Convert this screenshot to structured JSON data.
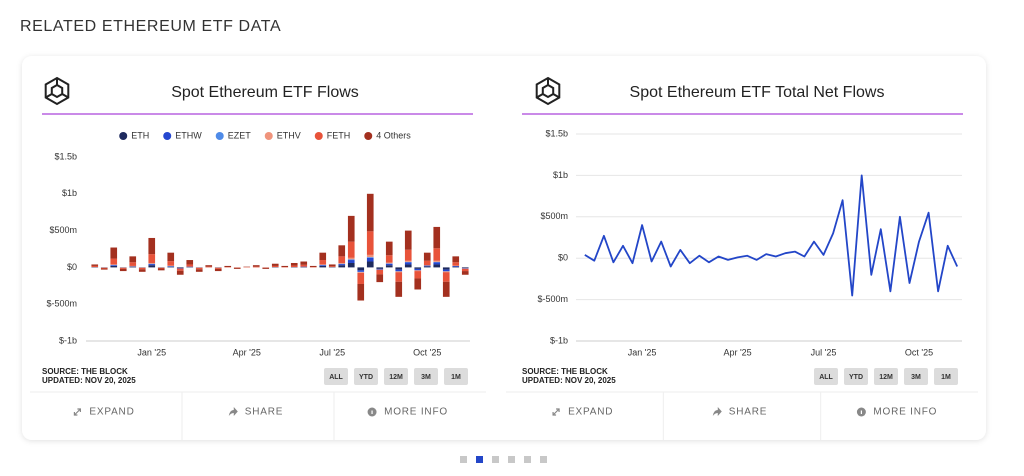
{
  "page": {
    "heading": "RELATED ETHEREUM ETF DATA",
    "panels": [
      {
        "source": "SOURCE: THE BLOCK",
        "updated": "UPDATED: NOV 20, 2025",
        "ranges": [
          "ALL",
          "YTD",
          "12M",
          "3M",
          "1M"
        ],
        "actions": [
          "EXPAND",
          "SHARE",
          "MORE INFO"
        ]
      },
      {
        "source": "SOURCE: THE BLOCK",
        "updated": "UPDATED: NOV 20, 2025",
        "ranges": [
          "ALL",
          "YTD",
          "12M",
          "3M",
          "1M"
        ],
        "actions": [
          "EXPAND",
          "SHARE",
          "MORE INFO"
        ]
      }
    ]
  },
  "chart_data": [
    {
      "type": "bar",
      "stacked": true,
      "title": "Spot Ethereum ETF Flows",
      "legend": "top",
      "grid": false,
      "categories": [
        null,
        null,
        null,
        null,
        null,
        null,
        "Jan '25",
        null,
        null,
        null,
        null,
        null,
        null,
        null,
        null,
        null,
        "Apr '25",
        null,
        null,
        null,
        null,
        null,
        null,
        null,
        null,
        "Jul '25",
        null,
        null,
        null,
        null,
        null,
        null,
        null,
        null,
        null,
        "Oct '25",
        null,
        null,
        null,
        null
      ],
      "ylim": [
        -1000,
        1500
      ],
      "yticks": [
        {
          "value": -1000,
          "label": "$-1b"
        },
        {
          "value": -500,
          "label": "$-500m"
        },
        {
          "value": 0,
          "label": "$0"
        },
        {
          "value": 500,
          "label": "$500m"
        },
        {
          "value": 1000,
          "label": "$1b"
        },
        {
          "value": 1500,
          "label": "$1.5b"
        }
      ],
      "series": [
        {
          "name": "ETH",
          "color": "#1e2a5e",
          "values": [
            5,
            -5,
            20,
            -5,
            10,
            -5,
            30,
            -5,
            10,
            -10,
            5,
            -5,
            0,
            -5,
            0,
            0,
            0,
            0,
            0,
            5,
            0,
            5,
            5,
            0,
            20,
            5,
            30,
            60,
            -40,
            80,
            -20,
            30,
            -30,
            40,
            -20,
            15,
            40,
            -30,
            10,
            -10
          ]
        },
        {
          "name": "ETHW",
          "color": "#2547d0",
          "values": [
            0,
            0,
            10,
            0,
            5,
            0,
            15,
            0,
            5,
            -5,
            5,
            0,
            0,
            0,
            0,
            0,
            0,
            0,
            0,
            0,
            0,
            0,
            5,
            0,
            10,
            0,
            15,
            40,
            -20,
            50,
            -10,
            20,
            -20,
            30,
            -20,
            10,
            30,
            -20,
            10,
            -5
          ]
        },
        {
          "name": "EZET",
          "color": "#4f8be8",
          "values": [
            0,
            0,
            5,
            0,
            0,
            0,
            5,
            0,
            5,
            0,
            0,
            0,
            0,
            0,
            0,
            0,
            0,
            0,
            0,
            0,
            0,
            0,
            0,
            0,
            5,
            0,
            5,
            10,
            -5,
            10,
            0,
            5,
            -5,
            5,
            0,
            0,
            5,
            -5,
            0,
            0
          ]
        },
        {
          "name": "ETHV",
          "color": "#f0947c",
          "values": [
            0,
            0,
            5,
            0,
            5,
            0,
            10,
            0,
            5,
            0,
            0,
            0,
            0,
            0,
            0,
            0,
            0,
            0,
            0,
            0,
            0,
            0,
            0,
            0,
            5,
            0,
            10,
            20,
            -10,
            30,
            -5,
            10,
            -10,
            15,
            -10,
            5,
            15,
            -10,
            5,
            -5
          ]
        },
        {
          "name": "FETH",
          "color": "#e8533a",
          "values": [
            15,
            -10,
            80,
            -15,
            50,
            -20,
            120,
            -10,
            60,
            -30,
            30,
            -20,
            10,
            -15,
            5,
            -5,
            5,
            10,
            -5,
            15,
            5,
            20,
            25,
            5,
            60,
            10,
            90,
            220,
            -150,
            320,
            -60,
            100,
            -130,
            150,
            -100,
            60,
            170,
            -130,
            45,
            -30
          ]
        },
        {
          "name": "4 Others",
          "color": "#a3301f",
          "values": [
            20,
            -15,
            150,
            -30,
            80,
            -35,
            220,
            -25,
            115,
            -55,
            60,
            -35,
            20,
            -30,
            15,
            -15,
            5,
            20,
            -15,
            30,
            15,
            35,
            45,
            15,
            100,
            25,
            150,
            350,
            -225,
            510,
            -105,
            185,
            -205,
            260,
            -150,
            110,
            290,
            -205,
            80,
            -50
          ]
        }
      ]
    },
    {
      "type": "line",
      "title": "Spot Ethereum ETF Total Net Flows",
      "grid": true,
      "categories": [
        null,
        null,
        null,
        null,
        null,
        null,
        "Jan '25",
        null,
        null,
        null,
        null,
        null,
        null,
        null,
        null,
        null,
        "Apr '25",
        null,
        null,
        null,
        null,
        null,
        null,
        null,
        null,
        "Jul '25",
        null,
        null,
        null,
        null,
        null,
        null,
        null,
        null,
        null,
        "Oct '25",
        null,
        null,
        null,
        null
      ],
      "ylim": [
        -1000,
        1500
      ],
      "yticks": [
        {
          "value": -1000,
          "label": "$-1b"
        },
        {
          "value": -500,
          "label": "$-500m"
        },
        {
          "value": 0,
          "label": "$0"
        },
        {
          "value": 500,
          "label": "$500m"
        },
        {
          "value": 1000,
          "label": "$1b"
        },
        {
          "value": 1500,
          "label": "$1.5b"
        }
      ],
      "color": "#2346c8",
      "values": [
        40,
        -30,
        270,
        -50,
        150,
        -60,
        400,
        -40,
        200,
        -100,
        100,
        -60,
        30,
        -50,
        20,
        -20,
        10,
        30,
        -20,
        50,
        20,
        60,
        80,
        20,
        200,
        40,
        300,
        700,
        -450,
        1000,
        -200,
        350,
        -400,
        500,
        -300,
        200,
        550,
        -400,
        150,
        -100
      ]
    }
  ]
}
